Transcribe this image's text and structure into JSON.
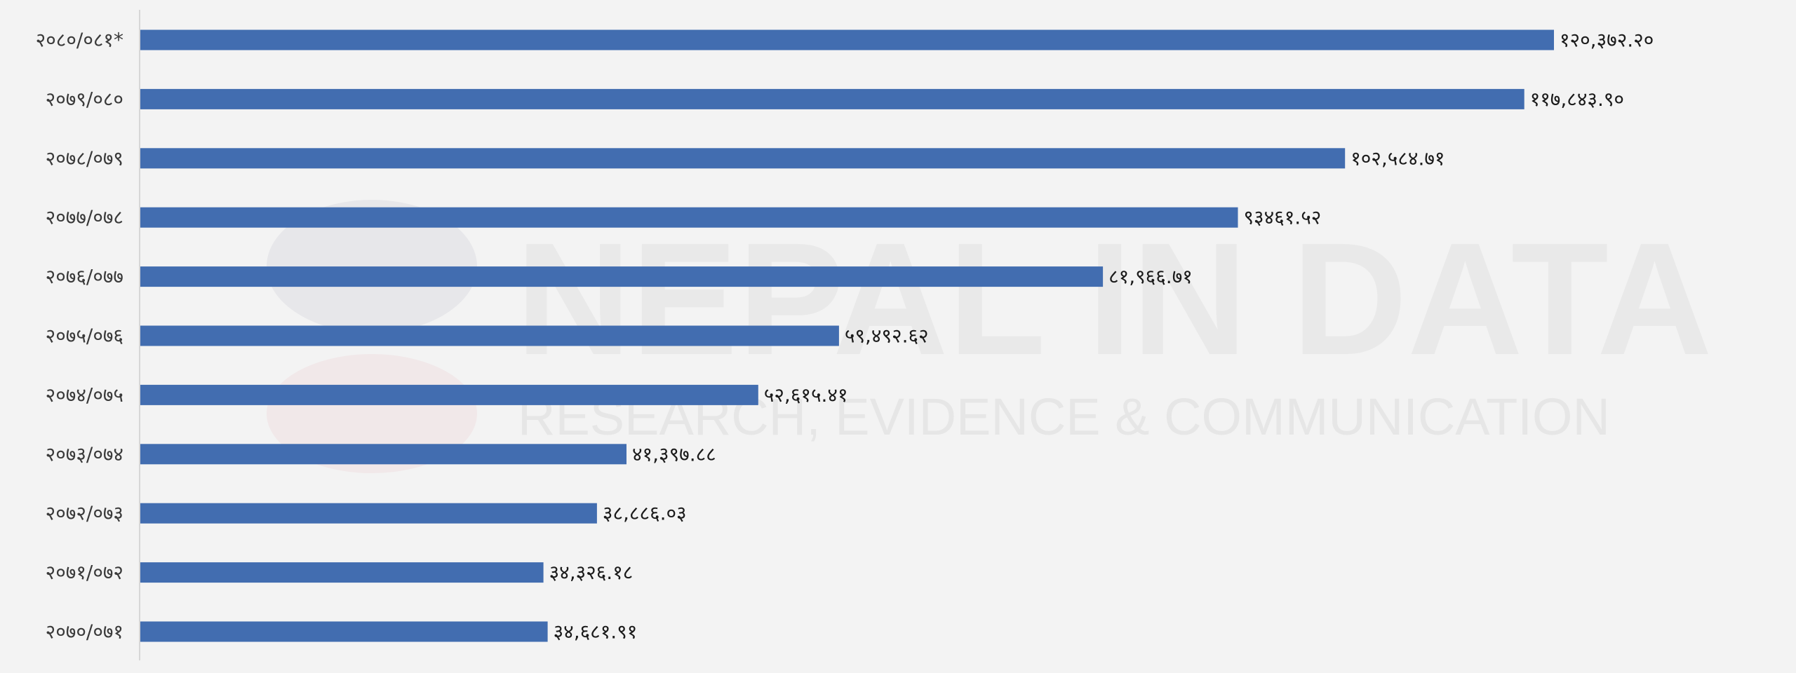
{
  "watermark": {
    "title": "NEPAL IN DATA",
    "subtitle": "RESEARCH, EVIDENCE & COMMUNICATION",
    "logo_colors": [
      "#2b3a67",
      "#d62b3a"
    ]
  },
  "colors": {
    "bar": "#426db0",
    "background": "#f3f3f3",
    "axis": "#cccccc"
  },
  "chart_data": {
    "type": "bar",
    "orientation": "horizontal",
    "categories": [
      "२०८०/०८१*",
      "२०७९/०८०",
      "२०७८/०७९",
      "२०७७/०७८",
      "२०७६/०७७",
      "२०७५/०७६",
      "२०७४/०७५",
      "२०७३/०७४",
      "२०७२/०७३",
      "२०७१/०७२",
      "२०७०/०७१"
    ],
    "values": [
      120372.2,
      117843.9,
      102584.71,
      93461.52,
      81966.71,
      59492.62,
      52615.41,
      41397.88,
      38886.03,
      34326.18,
      34681.91
    ],
    "value_labels": [
      "१२०,३७२.२०",
      "११७,८४३.९०",
      "१०२,५८४.७१",
      "९३४६१.५२",
      "८१,९६६.७१",
      "५९,४९२.६२",
      "५२,६१५.४१",
      "४१,३९७.८८",
      "३८,८८६.०३",
      "३४,३२६.१८",
      "३४,६८१.९१"
    ],
    "title": "",
    "xlabel": "",
    "ylabel": "",
    "xlim": [
      0,
      120372.2
    ],
    "grid": false,
    "legend": "none"
  }
}
